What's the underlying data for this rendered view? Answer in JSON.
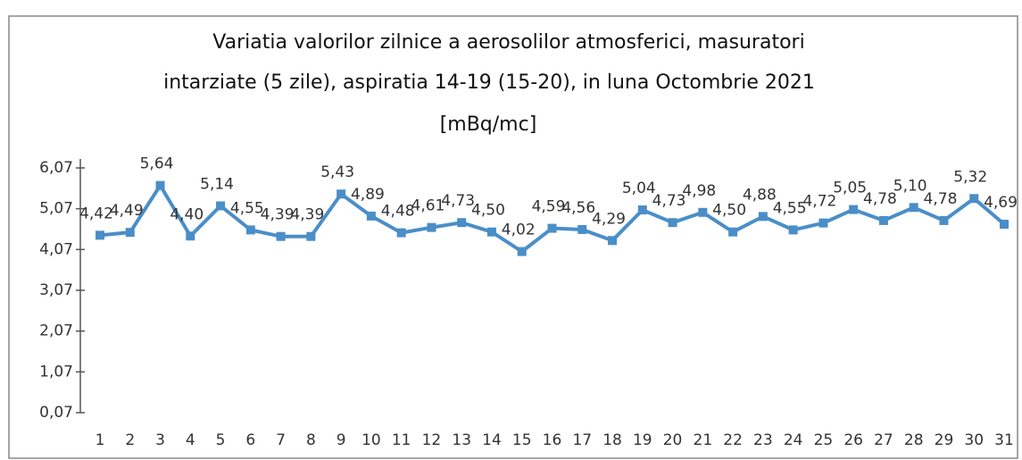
{
  "chart_data": {
    "type": "line",
    "title": [
      "Variatia valorilor zilnice a aerosolilor atmosferici, masuratori",
      "intarziate (5 zile), aspiratia 14-19 (15-20),  in luna Octombrie 2021",
      "[mBq/mc]"
    ],
    "categories": [
      "1",
      "2",
      "3",
      "4",
      "5",
      "6",
      "7",
      "8",
      "9",
      "10",
      "11",
      "12",
      "13",
      "14",
      "15",
      "16",
      "17",
      "18",
      "19",
      "20",
      "21",
      "22",
      "23",
      "24",
      "25",
      "26",
      "27",
      "28",
      "29",
      "30",
      "31"
    ],
    "series": [
      {
        "name": "aspiratia 14-19 (15-20)",
        "color": "#4a8ec8",
        "values": [
          4.42,
          4.49,
          5.64,
          4.4,
          5.14,
          4.55,
          4.39,
          4.39,
          5.43,
          4.89,
          4.48,
          4.61,
          4.73,
          4.5,
          4.02,
          4.59,
          4.56,
          4.29,
          5.04,
          4.73,
          4.98,
          4.5,
          4.88,
          4.55,
          4.72,
          5.05,
          4.78,
          5.1,
          4.78,
          5.32,
          4.69
        ],
        "value_labels": [
          "4,42",
          "4,49",
          "5,64",
          "4,40",
          "5,14",
          "4,55",
          "4,39",
          "4,39",
          "5,43",
          "4,89",
          "4,48",
          "4,61",
          "4,73",
          "4,50",
          "4,02",
          "4,59",
          "4,56",
          "4,29",
          "5,04",
          "4,73",
          "4,98",
          "4,50",
          "4,88",
          "4,55",
          "4,72",
          "5,05",
          "4,78",
          "5,10",
          "4,78",
          "5,32",
          "4,69"
        ]
      }
    ],
    "ylim": [
      0.07,
      6.07
    ],
    "yticks": [
      {
        "value": 0.07,
        "label": "0,07"
      },
      {
        "value": 1.07,
        "label": "1,07"
      },
      {
        "value": 2.07,
        "label": "2,07"
      },
      {
        "value": 3.07,
        "label": "3,07"
      },
      {
        "value": 4.07,
        "label": "4,07"
      },
      {
        "value": 5.07,
        "label": "5,07"
      },
      {
        "value": 6.07,
        "label": "6,07"
      }
    ],
    "grid": false
  }
}
